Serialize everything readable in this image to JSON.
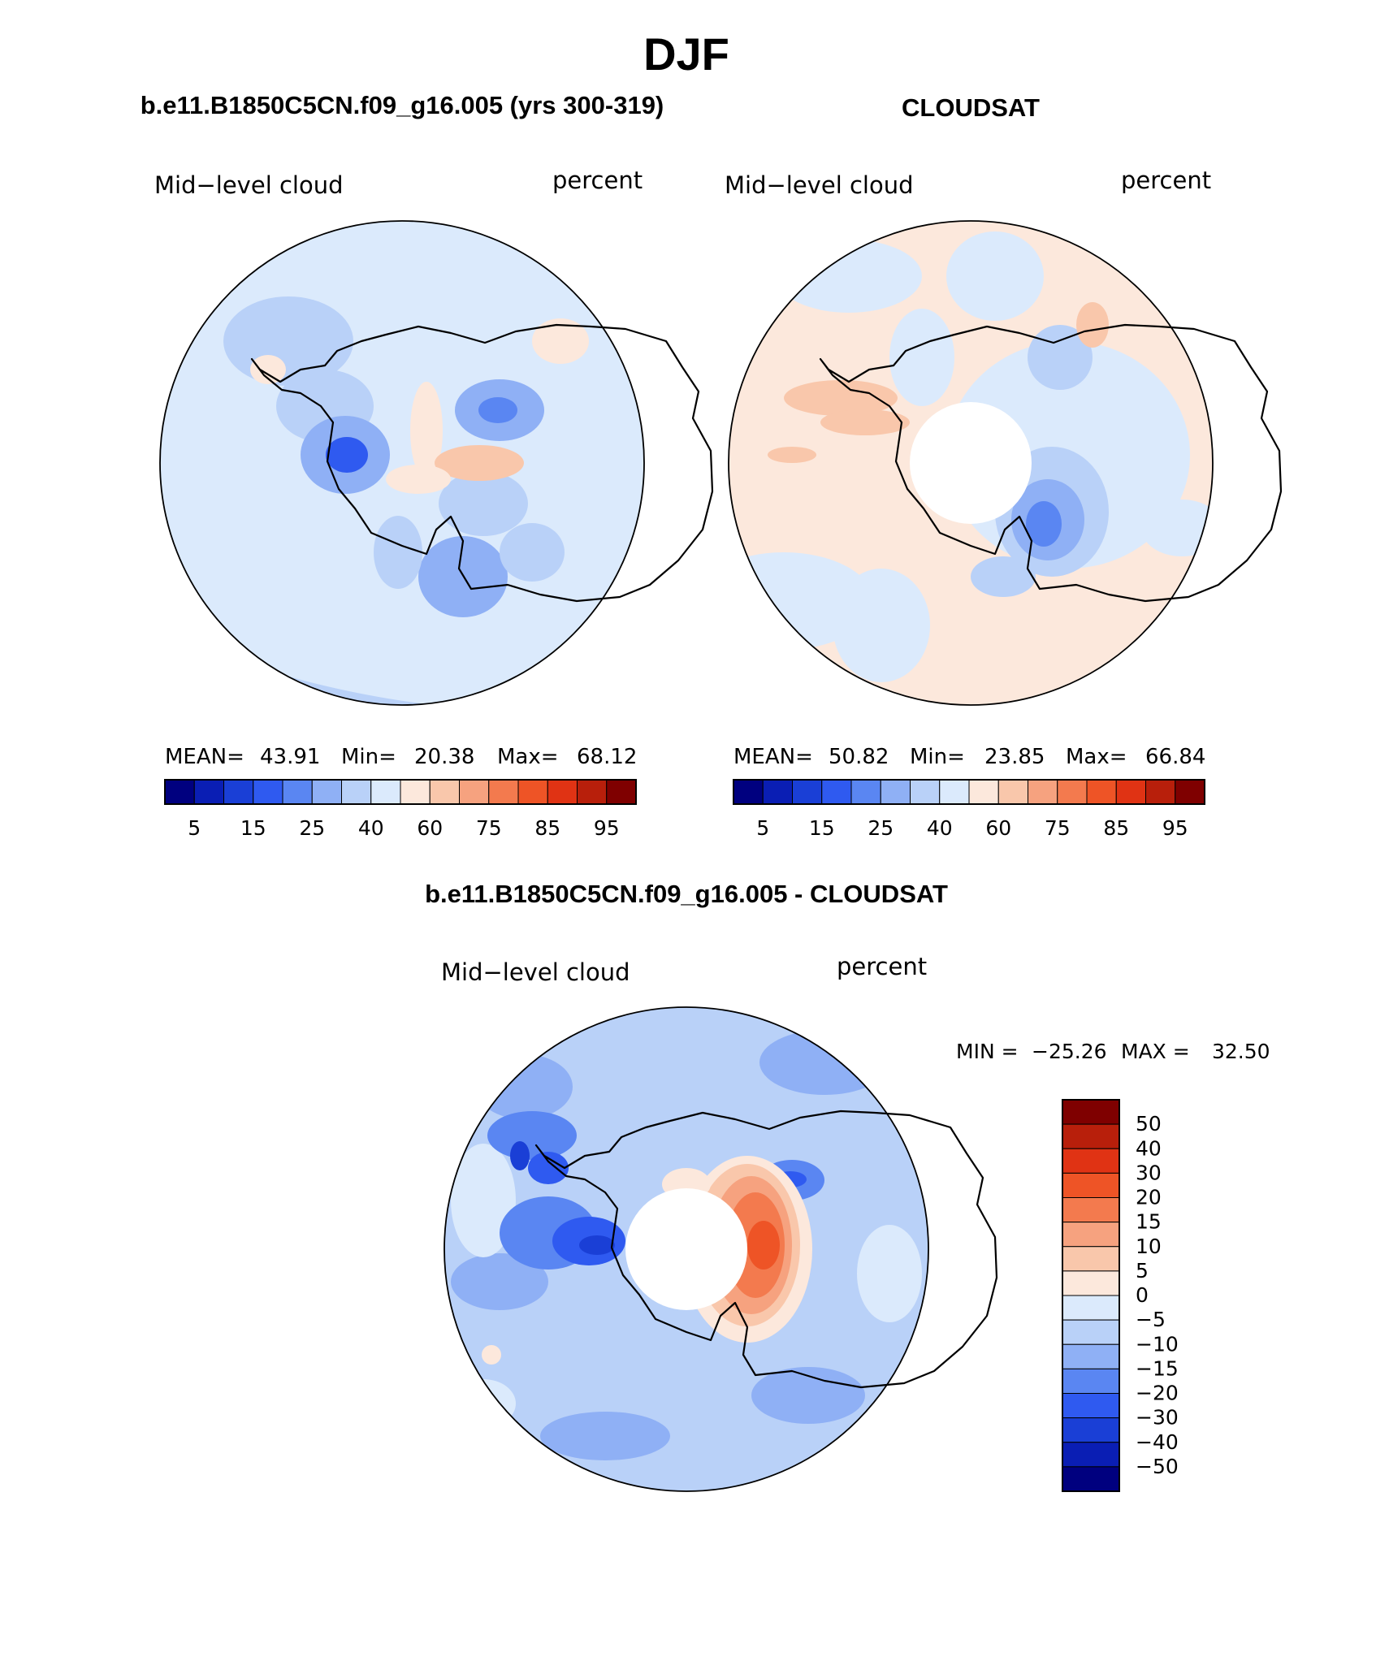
{
  "title": "DJF",
  "panels": {
    "model": {
      "header": "b.e11.B1850C5CN.f09_g16.005 (yrs 300-319)",
      "variable": "Mid−level cloud",
      "units": "percent",
      "stats": {
        "mean_label": "MEAN=",
        "mean": "43.91",
        "min_label": "Min=",
        "min": "20.38",
        "max_label": "Max=",
        "max": "68.12"
      }
    },
    "obs": {
      "header": "CLOUDSAT",
      "variable": "Mid−level cloud",
      "units": "percent",
      "stats": {
        "mean_label": "MEAN=",
        "mean": "50.82",
        "min_label": "Min=",
        "min": "23.85",
        "max_label": "Max=",
        "max": "66.84"
      }
    },
    "diff": {
      "header": "b.e11.B1850C5CN.f09_g16.005 - CLOUDSAT",
      "variable": "Mid−level cloud",
      "units": "percent",
      "stats": {
        "min_label": "MIN =",
        "min": "−25.26",
        "max_label": "MAX =",
        "max": "32.50"
      }
    }
  },
  "abs_colorbar": {
    "colors": [
      "#00007f",
      "#0a1eb4",
      "#1a3fd6",
      "#2f5af0",
      "#5a86f2",
      "#8fb0f5",
      "#b9d1f8",
      "#dbeafc",
      "#fce8dc",
      "#f9c7ab",
      "#f6a27f",
      "#f37a4e",
      "#ee5426",
      "#e03314",
      "#b81f0b",
      "#7f0000"
    ],
    "tick_labels": [
      "5",
      "15",
      "25",
      "40",
      "60",
      "75",
      "85",
      "95"
    ]
  },
  "diff_colorbar": {
    "colors_top_to_bottom": [
      "#7f0000",
      "#b81f0b",
      "#e03314",
      "#ee5426",
      "#f37a4e",
      "#f6a27f",
      "#f9c7ab",
      "#fce8dc",
      "#dbeafc",
      "#b9d1f8",
      "#8fb0f5",
      "#5a86f2",
      "#2f5af0",
      "#1a3fd6",
      "#0a1eb4",
      "#00007f"
    ],
    "tick_labels_top_to_bottom": [
      "50",
      "40",
      "30",
      "20",
      "15",
      "10",
      "5",
      "0",
      "−5",
      "−10",
      "−15",
      "−20",
      "−30",
      "−40",
      "−50"
    ]
  },
  "chart_data": [
    {
      "type": "heatmap",
      "title": "b.e11.B1850C5CN.f09_g16.005 (yrs 300-319)",
      "variable": "Mid-level cloud",
      "units": "percent",
      "region": "Antarctica / Southern Ocean (polar stereographic)",
      "mean": 43.91,
      "min": 20.38,
      "max": 68.12,
      "contour_levels": [
        5,
        10,
        15,
        20,
        25,
        30,
        40,
        50,
        60,
        70,
        75,
        80,
        85,
        90,
        95
      ],
      "dominant_range": [
        40,
        60
      ]
    },
    {
      "type": "heatmap",
      "title": "CLOUDSAT",
      "variable": "Mid-level cloud",
      "units": "percent",
      "region": "Antarctica / Southern Ocean (polar stereographic)",
      "mean": 50.82,
      "min": 23.85,
      "max": 66.84,
      "contour_levels": [
        5,
        10,
        15,
        20,
        25,
        30,
        40,
        50,
        60,
        70,
        75,
        80,
        85,
        90,
        95
      ],
      "missing_data": "polar hole near South Pole"
    },
    {
      "type": "heatmap",
      "title": "b.e11.B1850C5CN.f09_g16.005 - CLOUDSAT",
      "variable": "Mid-level cloud",
      "units": "percent",
      "region": "Antarctica / Southern Ocean (polar stereographic)",
      "min": -25.26,
      "max": 32.5,
      "contour_levels": [
        -50,
        -40,
        -30,
        -20,
        -15,
        -10,
        -5,
        0,
        5,
        10,
        15,
        20,
        30,
        40,
        50
      ],
      "missing_data": "polar hole near South Pole"
    }
  ]
}
